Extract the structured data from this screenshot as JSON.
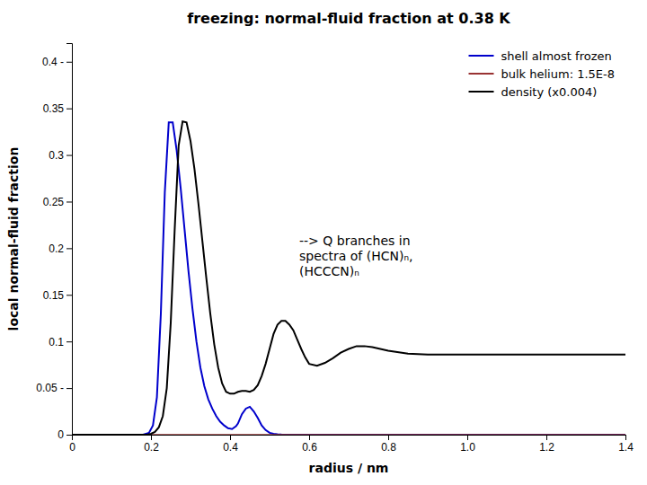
{
  "chart_data": {
    "type": "line",
    "title": "freezing: normal-fluid fraction at 0.38 K",
    "xlabel": "radius / nm",
    "ylabel": "local normal-fluid fraction",
    "xlim": [
      0,
      1.4
    ],
    "ylim": [
      0,
      0.42
    ],
    "xticks": [
      0,
      0.2,
      0.4,
      0.6,
      0.8,
      {
        "value": 1.0,
        "label": "1.0"
      },
      1.2,
      1.4
    ],
    "yticks": [
      0,
      {
        "value": 0.05,
        "label": "0.05 -"
      },
      0.1,
      0.15,
      0.2,
      0.25,
      0.3,
      0.35,
      {
        "value": 0.4,
        "label": "0.4 -"
      }
    ],
    "grid": false,
    "legend": "upper right",
    "annotations": [
      {
        "text": "--> Q branches in\nspectra of (HCN)ₙ,\n(HCCCN)ₙ",
        "x": 0.575,
        "y": 0.215
      }
    ],
    "series": [
      {
        "name": "shell almost frozen",
        "color": "#0000cc",
        "x": [
          0.0,
          0.18,
          0.195,
          0.205,
          0.215,
          0.225,
          0.235,
          0.245,
          0.255,
          0.265,
          0.275,
          0.285,
          0.295,
          0.305,
          0.315,
          0.325,
          0.335,
          0.345,
          0.355,
          0.365,
          0.375,
          0.385,
          0.395,
          0.405,
          0.415,
          0.42,
          0.43,
          0.44,
          0.45,
          0.46,
          0.47,
          0.48,
          0.49,
          0.5,
          0.51,
          0.52,
          0.53,
          0.54,
          0.55,
          0.6,
          0.7,
          0.8,
          1.0,
          1.4
        ],
        "values": [
          0.0,
          0.0,
          0.002,
          0.01,
          0.04,
          0.13,
          0.26,
          0.335,
          0.335,
          0.305,
          0.265,
          0.22,
          0.175,
          0.135,
          0.1,
          0.072,
          0.052,
          0.038,
          0.028,
          0.02,
          0.014,
          0.01,
          0.007,
          0.006,
          0.009,
          0.012,
          0.022,
          0.028,
          0.03,
          0.025,
          0.018,
          0.01,
          0.005,
          0.002,
          0.001,
          0.0005,
          0.0002,
          0.0001,
          0.0,
          0.0,
          0.0,
          0.0,
          0.0,
          0.0
        ]
      },
      {
        "name": "bulk helium:  1.5E-8",
        "color": "#993333",
        "type": "hline",
        "values": [
          1.5e-08
        ]
      },
      {
        "name": "density (x0.004)",
        "color": "#000000",
        "x": [
          0.0,
          0.19,
          0.2,
          0.21,
          0.22,
          0.23,
          0.24,
          0.25,
          0.26,
          0.27,
          0.28,
          0.29,
          0.3,
          0.31,
          0.32,
          0.33,
          0.34,
          0.35,
          0.36,
          0.37,
          0.38,
          0.39,
          0.4,
          0.41,
          0.42,
          0.43,
          0.44,
          0.45,
          0.46,
          0.47,
          0.48,
          0.49,
          0.5,
          0.51,
          0.52,
          0.53,
          0.54,
          0.55,
          0.56,
          0.57,
          0.58,
          0.59,
          0.6,
          0.62,
          0.64,
          0.66,
          0.68,
          0.7,
          0.72,
          0.74,
          0.76,
          0.78,
          0.8,
          0.85,
          0.9,
          0.95,
          1.0,
          1.1,
          1.2,
          1.3,
          1.4
        ],
        "values": [
          0.0,
          0.0,
          0.001,
          0.003,
          0.008,
          0.02,
          0.05,
          0.12,
          0.22,
          0.31,
          0.336,
          0.335,
          0.315,
          0.285,
          0.248,
          0.208,
          0.168,
          0.13,
          0.097,
          0.072,
          0.055,
          0.046,
          0.044,
          0.044,
          0.046,
          0.047,
          0.047,
          0.046,
          0.048,
          0.053,
          0.063,
          0.076,
          0.092,
          0.108,
          0.118,
          0.122,
          0.122,
          0.118,
          0.112,
          0.102,
          0.092,
          0.083,
          0.076,
          0.074,
          0.077,
          0.082,
          0.088,
          0.092,
          0.095,
          0.095,
          0.094,
          0.092,
          0.09,
          0.087,
          0.086,
          0.086,
          0.086,
          0.086,
          0.086,
          0.086,
          0.086
        ]
      }
    ]
  }
}
